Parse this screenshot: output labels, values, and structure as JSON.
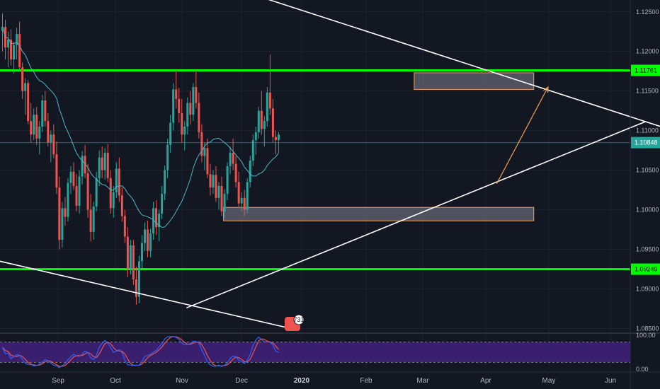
{
  "chart_data": {
    "type": "candlestick",
    "colors": {
      "background": "#131722",
      "grid": "#1e222d",
      "up": "#26a69a",
      "down": "#ef5350",
      "ma": "#4fb6c6",
      "support_resistance": "#00ff00",
      "trendline": "#ffffff",
      "zone_fill": "#6b6b78",
      "zone_border": "#f0a050",
      "arrow": "#f0a050",
      "stoch_k": "#2962ff",
      "stoch_d": "#ef5350",
      "stoch_band": "#3a1f6e",
      "price_line": "#26a69a"
    },
    "y_axis": {
      "range": [
        1.0845,
        1.1265
      ],
      "ticks": [
        "1.12500",
        "1.12000",
        "1.11500",
        "1.11000",
        "1.10500",
        "1.10000",
        "1.09500",
        "1.09000",
        "1.08500"
      ]
    },
    "x_axis": {
      "labels": [
        {
          "text": "Sep",
          "bold": false
        },
        {
          "text": "Oct",
          "bold": false
        },
        {
          "text": "Nov",
          "bold": false
        },
        {
          "text": "Dec",
          "bold": false
        },
        {
          "text": "2020",
          "bold": true
        },
        {
          "text": "Feb",
          "bold": false
        },
        {
          "text": "Mar",
          "bold": false
        },
        {
          "text": "Apr",
          "bold": false
        },
        {
          "text": "May",
          "bold": false
        },
        {
          "text": "Jun",
          "bold": false
        }
      ]
    },
    "price_labels": [
      {
        "text": "1.11761",
        "value": 1.11761,
        "kind": "green"
      },
      {
        "text": "1.10848",
        "value": 1.10848,
        "kind": "current"
      },
      {
        "text": "1.09249",
        "value": 1.09249,
        "kind": "green"
      }
    ],
    "horizontal_levels": [
      1.11761,
      1.09249
    ],
    "zones": [
      {
        "from_bar": 145,
        "to_bar": 187,
        "low": 1.1152,
        "high": 1.1173
      },
      {
        "from_bar": 78,
        "to_bar": 187,
        "low": 1.0986,
        "high": 1.1003
      }
    ],
    "trendlines": [
      {
        "x1_bar": 60,
        "y1": 1.1305,
        "x2_bar": 375,
        "y2": 1.0938
      },
      {
        "x1_bar": 65,
        "y1": 1.0876,
        "x2_bar": 226,
        "y2": 1.1111
      },
      {
        "x1_bar": -3,
        "y1": 1.0937,
        "x2_bar": 104,
        "y2": 1.0848
      }
    ],
    "arrow": {
      "x1_bar": 174,
      "y1": 1.1033,
      "x2_bar": 192,
      "y2": 1.1155
    },
    "stochastic": {
      "range": [
        0,
        100
      ],
      "ticks": [
        "100.00",
        "0.00"
      ],
      "band": [
        20,
        80
      ]
    },
    "badge_text": "731",
    "candles_seed": [
      [
        1.1226,
        1.1248,
        1.12,
        1.1231
      ],
      [
        1.1231,
        1.124,
        1.119,
        1.1205
      ],
      [
        1.1205,
        1.1225,
        1.118,
        1.1215
      ],
      [
        1.1215,
        1.1228,
        1.1182,
        1.119
      ],
      [
        1.119,
        1.1212,
        1.1172,
        1.1208
      ],
      [
        1.1208,
        1.123,
        1.119,
        1.1222
      ],
      [
        1.1222,
        1.1238,
        1.1175,
        1.118
      ],
      [
        1.118,
        1.1186,
        1.114,
        1.115
      ],
      [
        1.115,
        1.1166,
        1.112,
        1.116
      ],
      [
        1.116,
        1.1164,
        1.1108,
        1.1112
      ],
      [
        1.1112,
        1.1135,
        1.1085,
        1.1095
      ],
      [
        1.1095,
        1.1128,
        1.1088,
        1.112
      ],
      [
        1.112,
        1.113,
        1.1082,
        1.109
      ],
      [
        1.109,
        1.1112,
        1.107,
        1.1105
      ],
      [
        1.1105,
        1.1145,
        1.1098,
        1.1138
      ],
      [
        1.1138,
        1.115,
        1.1105,
        1.1112
      ],
      [
        1.1112,
        1.1122,
        1.108,
        1.1085
      ],
      [
        1.1085,
        1.11,
        1.106,
        1.1095
      ],
      [
        1.1095,
        1.1108,
        1.1065,
        1.107
      ],
      [
        1.107,
        1.1086,
        1.102,
        1.1028
      ],
      [
        1.1028,
        1.1042,
        1.095,
        1.0962
      ],
      [
        1.0962,
        1.101,
        1.0952,
        1.1002
      ],
      [
        1.1002,
        1.1016,
        1.098,
        1.0991
      ],
      [
        1.0991,
        1.104,
        1.0985,
        1.1034
      ],
      [
        1.1034,
        1.1055,
        1.102,
        1.1048
      ],
      [
        1.1048,
        1.106,
        1.1025,
        1.103
      ],
      [
        1.103,
        1.1045,
        1.0998,
        1.1005
      ],
      [
        1.1005,
        1.105,
        1.0995,
        1.1042
      ],
      [
        1.1042,
        1.1074,
        1.1032,
        1.1068
      ],
      [
        1.1068,
        1.1082,
        1.104,
        1.1046
      ],
      [
        1.1046,
        1.1058,
        1.099,
        1.1
      ],
      [
        1.1,
        1.102,
        1.096,
        1.0972
      ],
      [
        1.0972,
        1.101,
        1.0962,
        1.1004
      ],
      [
        1.1004,
        1.1048,
        1.0998,
        1.104
      ],
      [
        1.104,
        1.1075,
        1.103,
        1.1066
      ],
      [
        1.1066,
        1.108,
        1.104,
        1.105
      ],
      [
        1.105,
        1.1078,
        1.1038,
        1.1072
      ],
      [
        1.1072,
        1.1083,
        1.1035,
        1.104
      ],
      [
        1.104,
        1.105,
        1.0995,
        1.1002
      ],
      [
        1.1002,
        1.103,
        1.099,
        1.1022
      ],
      [
        1.1022,
        1.106,
        1.1015,
        1.1052
      ],
      [
        1.1052,
        1.1066,
        1.101,
        1.1018
      ],
      [
        1.1018,
        1.1028,
        1.0985,
        1.0992
      ],
      [
        1.0992,
        1.1,
        1.0958,
        1.0966
      ],
      [
        1.0966,
        1.0978,
        1.0915,
        1.0925
      ],
      [
        1.0925,
        1.0962,
        1.0918,
        1.0955
      ],
      [
        1.0955,
        1.0962,
        1.0905,
        1.0912
      ],
      [
        1.0912,
        1.0928,
        1.088,
        1.089
      ],
      [
        1.089,
        1.0942,
        1.0882,
        1.0935
      ],
      [
        1.0935,
        1.0968,
        1.0926,
        1.0958
      ],
      [
        1.0958,
        1.0984,
        1.0948,
        1.0975
      ],
      [
        1.0975,
        1.0986,
        1.094,
        1.0948
      ],
      [
        1.0948,
        1.0976,
        1.094,
        1.097
      ],
      [
        1.097,
        1.101,
        1.0962,
        1.1002
      ],
      [
        1.1002,
        1.1012,
        1.0968,
        1.0978
      ],
      [
        1.0978,
        1.1,
        1.096,
        1.0995
      ],
      [
        1.0995,
        1.103,
        1.0988,
        1.102
      ],
      [
        1.102,
        1.1056,
        1.1012,
        1.105
      ],
      [
        1.105,
        1.109,
        1.104,
        1.1082
      ],
      [
        1.1082,
        1.112,
        1.1072,
        1.111
      ],
      [
        1.111,
        1.116,
        1.11,
        1.1152
      ],
      [
        1.1152,
        1.1176,
        1.1128,
        1.114
      ],
      [
        1.114,
        1.1154,
        1.111,
        1.1122
      ],
      [
        1.1122,
        1.114,
        1.1085,
        1.1095
      ],
      [
        1.1095,
        1.1112,
        1.1075,
        1.1105
      ],
      [
        1.1105,
        1.1142,
        1.1095,
        1.1135
      ],
      [
        1.1135,
        1.115,
        1.1108,
        1.112
      ],
      [
        1.112,
        1.116,
        1.1112,
        1.1155
      ],
      [
        1.1155,
        1.1176,
        1.1128,
        1.1135
      ],
      [
        1.1135,
        1.1148,
        1.109,
        1.1098
      ],
      [
        1.1098,
        1.1108,
        1.106,
        1.1068
      ],
      [
        1.1068,
        1.1085,
        1.105,
        1.1078
      ],
      [
        1.1078,
        1.109,
        1.104,
        1.1045
      ],
      [
        1.1045,
        1.1058,
        1.1018,
        1.1028
      ],
      [
        1.1028,
        1.105,
        1.102,
        1.1044
      ],
      [
        1.1044,
        1.1055,
        1.101,
        1.1015
      ],
      [
        1.1015,
        1.1035,
        1.1,
        1.103
      ],
      [
        1.103,
        1.1042,
        1.0992,
        1.0998
      ],
      [
        1.0998,
        1.1026,
        1.099,
        1.102
      ],
      [
        1.102,
        1.106,
        1.1012,
        1.1055
      ],
      [
        1.1055,
        1.108,
        1.1045,
        1.1072
      ],
      [
        1.1072,
        1.109,
        1.105,
        1.1058
      ],
      [
        1.1058,
        1.1068,
        1.1028,
        1.1035
      ],
      [
        1.1035,
        1.1048,
        1.1002,
        1.1008
      ],
      [
        1.1008,
        1.1022,
        1.0998,
        1.1015
      ],
      [
        1.1015,
        1.1025,
        1.0992,
        1.1
      ],
      [
        1.1,
        1.104,
        1.0995,
        1.1035
      ],
      [
        1.1035,
        1.1068,
        1.1028,
        1.1062
      ],
      [
        1.1062,
        1.1095,
        1.1055,
        1.1088
      ],
      [
        1.1088,
        1.1105,
        1.107,
        1.1098
      ],
      [
        1.1098,
        1.113,
        1.109,
        1.1125
      ],
      [
        1.1125,
        1.115,
        1.1095,
        1.1102
      ],
      [
        1.1102,
        1.1118,
        1.108,
        1.1112
      ],
      [
        1.1112,
        1.1155,
        1.1105,
        1.1148
      ],
      [
        1.1148,
        1.1196,
        1.112,
        1.1128
      ],
      [
        1.1128,
        1.114,
        1.1085,
        1.1092
      ],
      [
        1.1092,
        1.11,
        1.107,
        1.1088
      ],
      [
        1.1088,
        1.1098,
        1.1072,
        1.1095
      ]
    ]
  }
}
